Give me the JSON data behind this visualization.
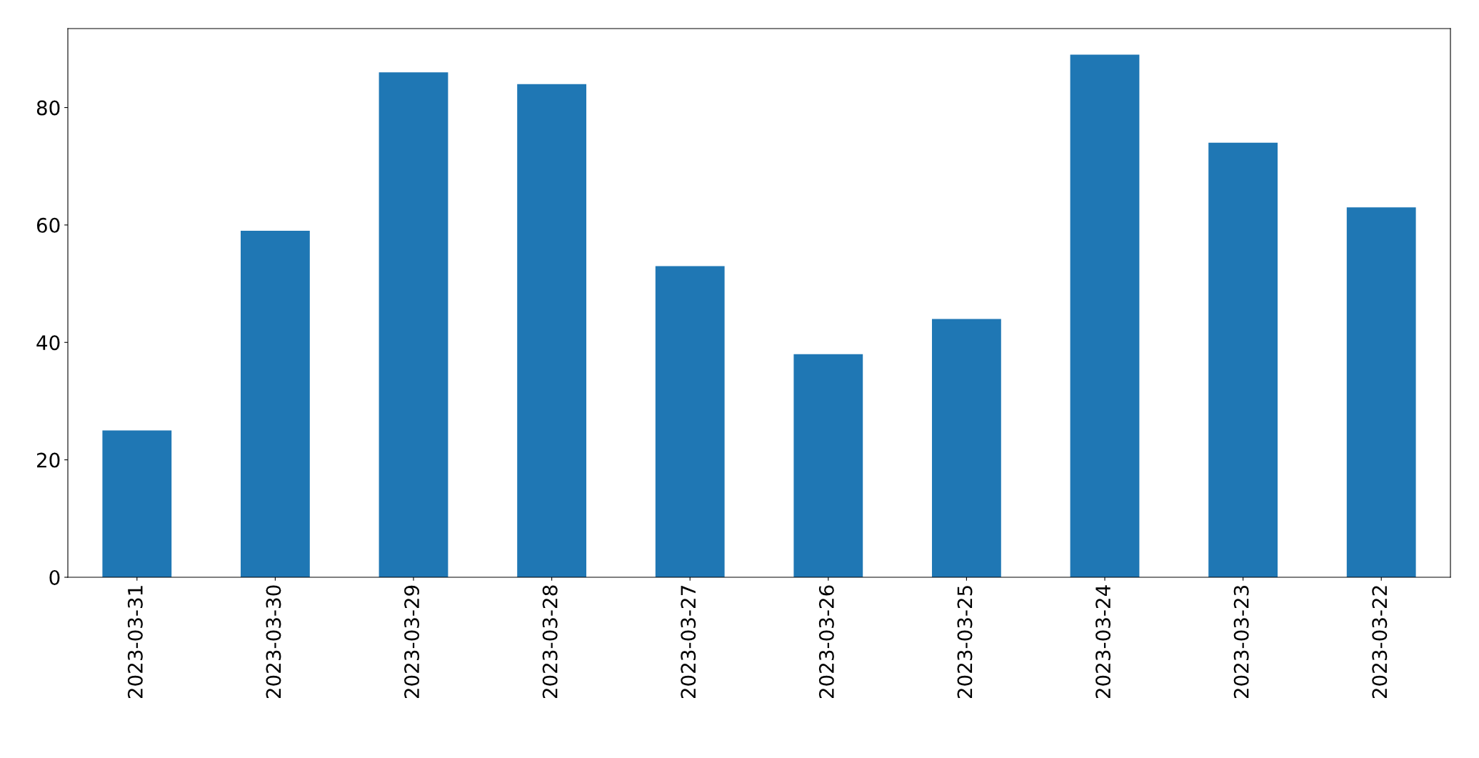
{
  "chart_data": {
    "type": "bar",
    "categories": [
      "2023-03-31",
      "2023-03-30",
      "2023-03-29",
      "2023-03-28",
      "2023-03-27",
      "2023-03-26",
      "2023-03-25",
      "2023-03-24",
      "2023-03-23",
      "2023-03-22"
    ],
    "values": [
      25,
      59,
      86,
      84,
      53,
      38,
      44,
      89,
      74,
      63
    ],
    "color": "#1f77b4",
    "ylim": [
      0,
      93.45
    ],
    "yticks": [
      0,
      20,
      40,
      60,
      80
    ],
    "grid": false,
    "legend": false
  }
}
